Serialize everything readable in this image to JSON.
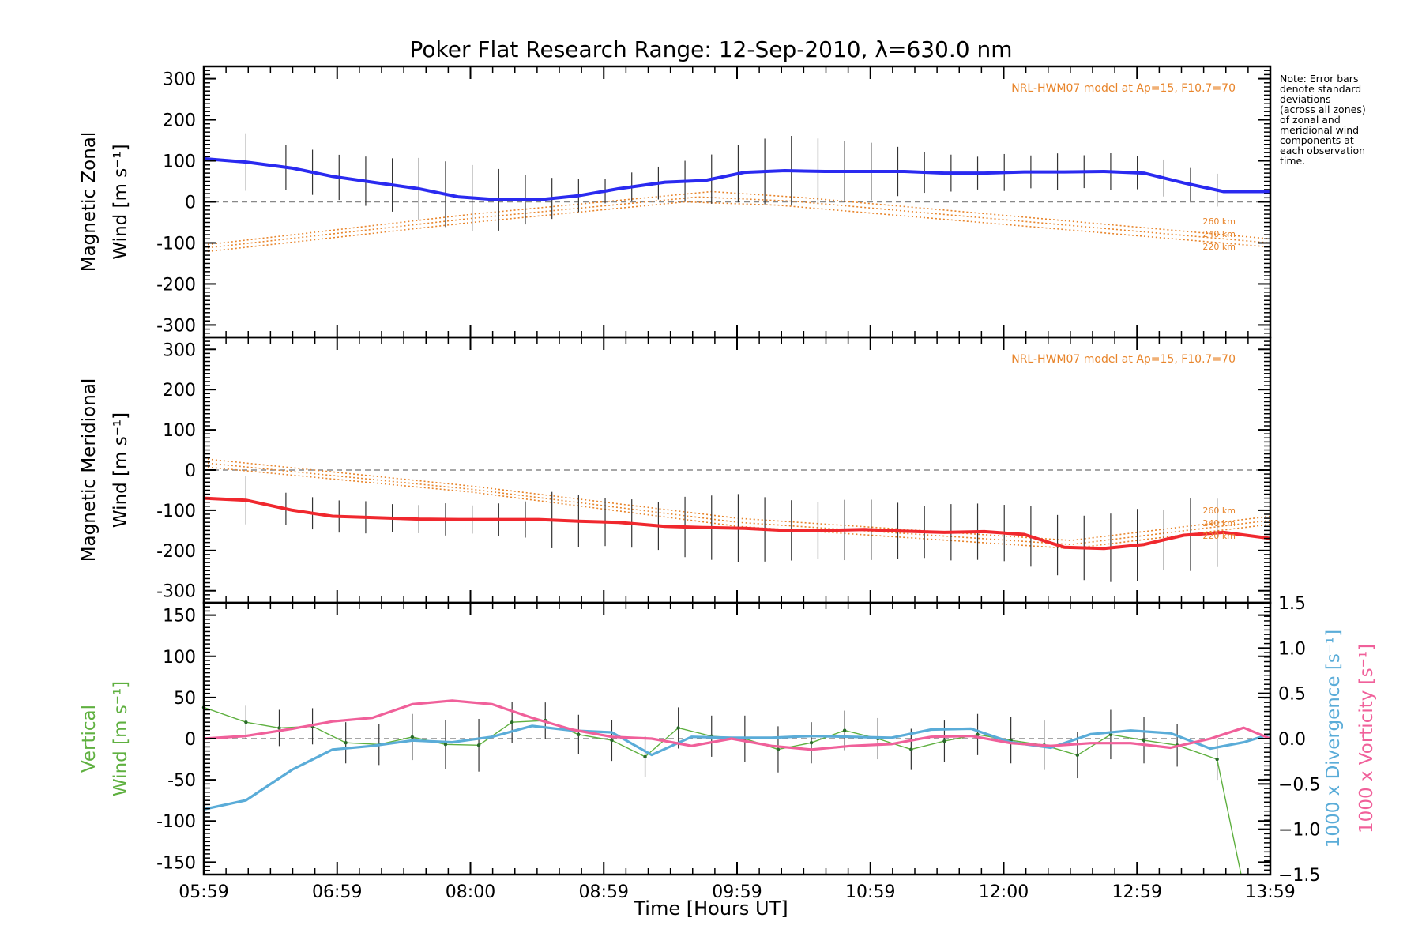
{
  "chart_data": {
    "title": "Poker Flat Research Range: 12-Sep-2010, λ=630.0 nm",
    "xlabel": "Time [Hours UT]",
    "x_ticks": [
      "05:59",
      "06:59",
      "08:00",
      "08:59",
      "09:59",
      "10:59",
      "12:00",
      "12:59",
      "13:59"
    ],
    "xlim_hours": [
      5.983,
      14.0
    ],
    "note": "Note: Error bars denote standard deviations (across all zones) of zonal and meridional wind components at each observation time.",
    "note_lines": [
      "Note: Error bars",
      "denote standard",
      "deviations",
      "(across all zones)",
      "of zonal and",
      "meridional wind",
      "components at",
      "each observation",
      "time."
    ],
    "colors": {
      "zonal": "#2a2af0",
      "meridional": "#f0282e",
      "divergence": "#5aacd8",
      "vorticity": "#f0609a",
      "vertical": "#5fb040",
      "model": "#e8842a",
      "errorbar": "#333333"
    },
    "panels": [
      {
        "type": "line",
        "name": "zonal",
        "ylabel_lines": [
          "Magnetic Zonal",
          "Wind [m s⁻¹]"
        ],
        "ylim": [
          -330,
          330
        ],
        "y_ticks": [
          300,
          200,
          100,
          0,
          -100,
          -200,
          -300
        ],
        "model_label": "NRL-HWM07 model at Ap=15, F10.7=70",
        "model_altitudes": [
          "260 km",
          "240 km",
          "220 km"
        ],
        "series": [
          {
            "name": "Magnetic Zonal Wind",
            "x": [
              5.983,
              6.3,
              6.65,
              6.95,
              7.25,
              7.6,
              7.9,
              8.2,
              8.5,
              8.8,
              9.1,
              9.45,
              9.75,
              10.05,
              10.35,
              10.65,
              10.95,
              11.25,
              11.55,
              11.85,
              12.15,
              12.45,
              12.75,
              13.05,
              13.35,
              13.65,
              14.0
            ],
            "values": [
              105,
              97,
              82,
              62,
              48,
              32,
              12,
              5,
              5,
              15,
              32,
              48,
              52,
              72,
              76,
              74,
              74,
              74,
              70,
              70,
              73,
              73,
              74,
              70,
              46,
              25,
              25
            ]
          }
        ],
        "model_series": [
          {
            "name": "260 km",
            "x": [
              5.983,
              8.0,
              9.8,
              10.5,
              14.0
            ],
            "values": [
              -105,
              -30,
              25,
              10,
              -90
            ]
          },
          {
            "name": "240 km",
            "x": [
              5.983,
              8.0,
              9.7,
              10.4,
              14.0
            ],
            "values": [
              -113,
              -40,
              12,
              2,
              -100
            ]
          },
          {
            "name": "220 km",
            "x": [
              5.983,
              8.0,
              9.6,
              10.3,
              14.0
            ],
            "values": [
              -122,
              -50,
              0,
              -8,
              -110
            ]
          }
        ],
        "errorbars": {
          "x": [
            6.3,
            6.6,
            6.8,
            7.0,
            7.2,
            7.4,
            7.6,
            7.8,
            8.0,
            8.2,
            8.4,
            8.6,
            8.8,
            9.0,
            9.2,
            9.4,
            9.6,
            9.8,
            10.0,
            10.2,
            10.4,
            10.6,
            10.8,
            11.0,
            11.2,
            11.4,
            11.6,
            11.8,
            12.0,
            12.2,
            12.4,
            12.6,
            12.8,
            13.0,
            13.2,
            13.4,
            13.6
          ],
          "half_width": [
            70,
            55,
            55,
            55,
            60,
            65,
            75,
            80,
            80,
            75,
            60,
            50,
            40,
            30,
            35,
            40,
            50,
            60,
            70,
            80,
            85,
            80,
            75,
            70,
            60,
            50,
            45,
            40,
            45,
            40,
            45,
            40,
            45,
            40,
            45,
            40,
            40
          ]
        }
      },
      {
        "type": "line",
        "name": "meridional",
        "ylabel_lines": [
          "Magnetic Meridional",
          "Wind [m s⁻¹]"
        ],
        "ylim": [
          -330,
          330
        ],
        "y_ticks": [
          300,
          200,
          100,
          0,
          -100,
          -200,
          -300
        ],
        "model_label": "NRL-HWM07 model at Ap=15, F10.7=70",
        "model_altitudes": [
          "260 km",
          "240 km",
          "220 km"
        ],
        "series": [
          {
            "name": "Magnetic Meridional Wind",
            "x": [
              5.983,
              6.3,
              6.65,
              6.95,
              7.25,
              7.6,
              7.9,
              8.2,
              8.5,
              8.8,
              9.1,
              9.45,
              9.75,
              10.05,
              10.35,
              10.65,
              10.95,
              11.25,
              11.55,
              11.85,
              12.15,
              12.45,
              12.75,
              13.05,
              13.35,
              13.65,
              14.0
            ],
            "values": [
              -70,
              -75,
              -100,
              -115,
              -118,
              -122,
              -123,
              -123,
              -123,
              -127,
              -130,
              -140,
              -143,
              -145,
              -150,
              -150,
              -148,
              -152,
              -155,
              -153,
              -160,
              -192,
              -195,
              -185,
              -162,
              -155,
              -170
            ]
          }
        ],
        "model_series": [
          {
            "name": "260 km",
            "x": [
              5.983,
              8.0,
              10.0,
              12.5,
              14.0
            ],
            "values": [
              28,
              -40,
              -120,
              -175,
              -115
            ]
          },
          {
            "name": "240 km",
            "x": [
              5.983,
              8.0,
              10.0,
              12.5,
              14.0
            ],
            "values": [
              18,
              -48,
              -130,
              -185,
              -125
            ]
          },
          {
            "name": "220 km",
            "x": [
              5.983,
              8.0,
              10.0,
              12.5,
              14.0
            ],
            "values": [
              8,
              -55,
              -140,
              -195,
              -135
            ]
          }
        ],
        "errorbars": {
          "x": [
            6.3,
            6.6,
            6.8,
            7.0,
            7.2,
            7.4,
            7.6,
            7.8,
            8.0,
            8.2,
            8.4,
            8.6,
            8.8,
            9.0,
            9.2,
            9.4,
            9.6,
            9.8,
            10.0,
            10.2,
            10.4,
            10.6,
            10.8,
            11.0,
            11.2,
            11.4,
            11.6,
            11.8,
            12.0,
            12.2,
            12.4,
            12.6,
            12.8,
            13.0,
            13.2,
            13.4,
            13.6
          ],
          "half_width": [
            60,
            40,
            40,
            40,
            40,
            35,
            35,
            40,
            35,
            40,
            45,
            70,
            65,
            60,
            60,
            60,
            75,
            80,
            85,
            80,
            75,
            70,
            75,
            75,
            70,
            65,
            70,
            70,
            70,
            75,
            75,
            80,
            85,
            90,
            75,
            90,
            85
          ]
        }
      },
      {
        "type": "line",
        "name": "vertical",
        "ylabel_lines": [
          "Vertical",
          "Wind [m s⁻¹]"
        ],
        "ylim": [
          -165,
          165
        ],
        "y_ticks": [
          150,
          100,
          50,
          0,
          -50,
          -100,
          -150
        ],
        "y2lim": [
          -1.5,
          1.5
        ],
        "y2_ticks": [
          "1.5",
          "1.0",
          "0.5",
          "0.0",
          "−0.5",
          "−1.0",
          "−1.5"
        ],
        "y2_values": [
          1.5,
          1.0,
          0.5,
          0.0,
          -0.5,
          -1.0,
          -1.5
        ],
        "y2label_1": "1000 x Divergence [s⁻¹]",
        "y2label_2": "1000 x Vorticity [s⁻¹]",
        "series": [
          {
            "name": "Vertical Wind",
            "x": [
              5.983,
              6.3,
              6.55,
              6.8,
              7.05,
              7.3,
              7.55,
              7.8,
              8.05,
              8.3,
              8.55,
              8.8,
              9.05,
              9.3,
              9.55,
              9.8,
              10.05,
              10.3,
              10.55,
              10.8,
              11.05,
              11.3,
              11.55,
              11.8,
              12.05,
              12.3,
              12.55,
              12.8,
              13.05,
              13.3,
              13.6,
              13.78
            ],
            "values": [
              38,
              20,
              13,
              15,
              -5,
              -7,
              2,
              -7,
              -8,
              20,
              22,
              5,
              -2,
              -22,
              13,
              3,
              0,
              -13,
              -5,
              10,
              0,
              -13,
              -3,
              5,
              -2,
              -8,
              -20,
              5,
              -2,
              -8,
              -25,
              -165
            ]
          },
          {
            "name": "1000 x Divergence",
            "axis": "y2",
            "x": [
              5.983,
              6.3,
              6.65,
              6.95,
              7.25,
              7.55,
              7.85,
              8.15,
              8.45,
              8.75,
              9.05,
              9.35,
              9.65,
              9.95,
              10.25,
              10.55,
              10.85,
              11.15,
              11.45,
              11.75,
              12.05,
              12.35,
              12.65,
              12.95,
              13.25,
              13.55,
              13.8,
              14.0
            ],
            "values": [
              -0.78,
              -0.68,
              -0.34,
              -0.12,
              -0.08,
              -0.02,
              -0.04,
              0.02,
              0.14,
              0.09,
              0.07,
              -0.18,
              0.02,
              0.01,
              0.01,
              0.03,
              0.02,
              0.01,
              0.1,
              0.11,
              -0.04,
              -0.1,
              0.05,
              0.09,
              0.06,
              -0.11,
              -0.04,
              0.05
            ]
          },
          {
            "name": "1000 x Vorticity",
            "axis": "y2",
            "x": [
              5.983,
              6.3,
              6.65,
              6.95,
              7.25,
              7.55,
              7.85,
              8.15,
              8.45,
              8.75,
              9.05,
              9.35,
              9.65,
              9.95,
              10.25,
              10.55,
              10.85,
              11.15,
              11.45,
              11.75,
              12.05,
              12.35,
              12.65,
              12.95,
              13.25,
              13.55,
              13.8,
              14.0
            ],
            "values": [
              0.0,
              0.03,
              0.11,
              0.19,
              0.23,
              0.38,
              0.42,
              0.38,
              0.23,
              0.1,
              0.02,
              0.0,
              -0.08,
              0.0,
              -0.08,
              -0.12,
              -0.08,
              -0.06,
              0.02,
              0.03,
              -0.05,
              -0.08,
              -0.05,
              -0.05,
              -0.1,
              0.0,
              0.12,
              0.0
            ]
          }
        ],
        "errorbars": {
          "x": [
            6.3,
            6.55,
            6.8,
            7.05,
            7.3,
            7.55,
            7.8,
            8.05,
            8.3,
            8.55,
            8.8,
            9.05,
            9.3,
            9.55,
            9.8,
            10.05,
            10.3,
            10.55,
            10.8,
            11.05,
            11.3,
            11.55,
            11.8,
            12.05,
            12.3,
            12.55,
            12.8,
            13.05,
            13.3,
            13.6
          ],
          "center": [
            20,
            13,
            15,
            -5,
            -7,
            2,
            -7,
            -8,
            20,
            22,
            5,
            -2,
            -22,
            13,
            3,
            0,
            -13,
            -5,
            10,
            0,
            -13,
            -3,
            5,
            -2,
            -8,
            -20,
            5,
            -2,
            -8,
            -25
          ],
          "half_width": [
            20,
            22,
            22,
            25,
            25,
            28,
            30,
            32,
            25,
            22,
            24,
            25,
            25,
            25,
            25,
            28,
            28,
            25,
            24,
            25,
            25,
            25,
            25,
            28,
            30,
            28,
            30,
            28,
            26,
            25
          ]
        }
      }
    ]
  }
}
